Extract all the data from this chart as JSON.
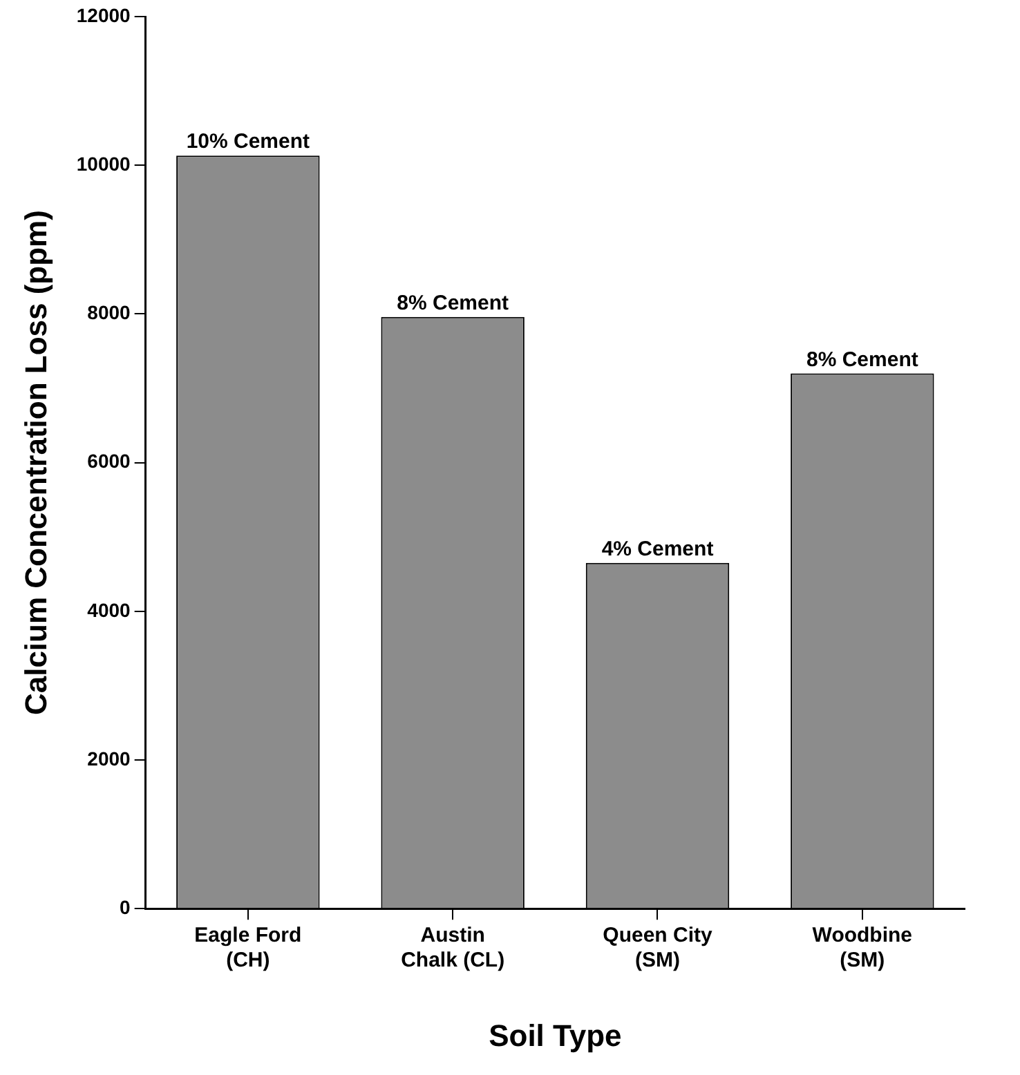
{
  "chart_data": {
    "type": "bar",
    "xlabel": "Soil Type",
    "ylabel": "Calcium Concentration Loss (ppm)",
    "categories": [
      "Eagle Ford (CH)",
      "Austin Chalk (CL)",
      "Queen City (SM)",
      "Woodbine (SM)"
    ],
    "values": [
      10130,
      7960,
      4650,
      7200
    ],
    "annotations": [
      {
        "text": "10% Cement",
        "x": "Eagle Ford (CH)",
        "y": 10130
      },
      {
        "text": "8% Cement",
        "x": "Austin Chalk (CL)",
        "y": 7960
      },
      {
        "text": "4% Cement",
        "x": "Queen City (SM)",
        "y": 4650
      },
      {
        "text": "8% Cement",
        "x": "Woodbine (SM)",
        "y": 7200
      }
    ],
    "color": "#8c8c8c",
    "ylim": [
      0,
      12000
    ],
    "yticks": [
      0,
      2000,
      4000,
      6000,
      8000,
      10000,
      12000
    ],
    "grid": false,
    "legend": false
  }
}
